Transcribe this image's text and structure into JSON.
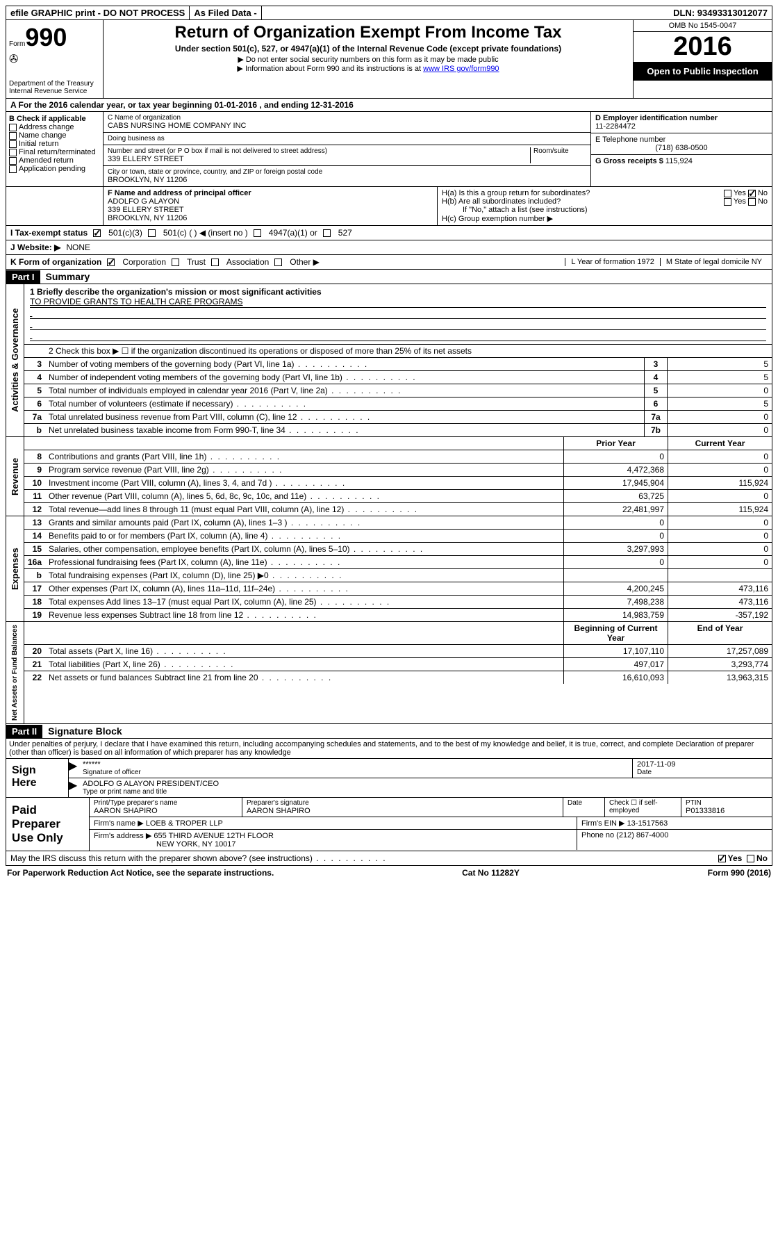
{
  "topbar": {
    "efile": "efile GRAPHIC print - DO NOT PROCESS",
    "asfiled": "As Filed Data -",
    "dln": "DLN: 93493313012077"
  },
  "formBox": {
    "form": "Form",
    "num": "990",
    "dept": "Department of the Treasury",
    "irs": "Internal Revenue Service"
  },
  "titleBox": {
    "main": "Return of Organization Exempt From Income Tax",
    "sub": "Under section 501(c), 527, or 4947(a)(1) of the Internal Revenue Code (except private foundations)",
    "note1": "▶ Do not enter social security numbers on this form as it may be made public",
    "note2": "▶ Information about Form 990 and its instructions is at ",
    "link": "www IRS gov/form990"
  },
  "yearBox": {
    "omb": "OMB No 1545-0047",
    "year": "2016",
    "open": "Open to Public Inspection"
  },
  "rowA": "A  For the 2016 calendar year, or tax year beginning 01-01-2016   , and ending 12-31-2016",
  "colB": {
    "label": "B Check if applicable",
    "items": [
      "Address change",
      "Name change",
      "Initial return",
      "Final return/terminated",
      "Amended return",
      "Application pending"
    ]
  },
  "colC": {
    "nameLabel": "C Name of organization",
    "name": "CABS NURSING HOME COMPANY INC",
    "dbaLabel": "Doing business as",
    "dba": "",
    "streetLabel": "Number and street (or P O  box if mail is not delivered to street address)",
    "roomLabel": "Room/suite",
    "street": "339 ELLERY STREET",
    "cityLabel": "City or town, state or province, country, and ZIP or foreign postal code",
    "city": "BROOKLYN, NY  11206"
  },
  "colDG": {
    "dLabel": "D Employer identification number",
    "ein": "11-2284472",
    "eLabel": "E Telephone number",
    "phone": "(718) 638-0500",
    "gLabel": "G Gross receipts $",
    "gross": "115,924"
  },
  "rowF": {
    "label": "F  Name and address of principal officer",
    "name": "ADOLFO G ALAYON",
    "street": "339 ELLERY STREET",
    "city": "BROOKLYN, NY  11206"
  },
  "rowH": {
    "ha": "H(a)  Is this a group return for subordinates?",
    "hb": "H(b)  Are all subordinates included?",
    "hbNote": "If \"No,\" attach a list  (see instructions)",
    "hc": "H(c)  Group exemption number ▶"
  },
  "rowI": {
    "label": "I   Tax-exempt status",
    "opts": [
      "501(c)(3)",
      "501(c) (   ) ◀ (insert no )",
      "4947(a)(1) or",
      "527"
    ]
  },
  "rowJ": {
    "label": "J  Website: ▶",
    "value": "NONE"
  },
  "rowK": {
    "label": "K Form of organization",
    "opts": [
      "Corporation",
      "Trust",
      "Association",
      "Other ▶"
    ],
    "l": "L Year of formation  1972",
    "m": "M State of legal domicile  NY"
  },
  "partI": {
    "header": "Part I",
    "title": "Summary"
  },
  "mission": {
    "label": "1  Briefly describe the organization's mission or most significant activities",
    "text": "TO PROVIDE GRANTS TO HEALTH CARE PROGRAMS"
  },
  "line2": "2   Check this box ▶ ☐  if the organization discontinued its operations or disposed of more than 25% of its net assets",
  "govLines": [
    {
      "n": "3",
      "t": "Number of voting members of the governing body (Part VI, line 1a)",
      "a": "3",
      "v": "5"
    },
    {
      "n": "4",
      "t": "Number of independent voting members of the governing body (Part VI, line 1b)",
      "a": "4",
      "v": "5"
    },
    {
      "n": "5",
      "t": "Total number of individuals employed in calendar year 2016 (Part V, line 2a)",
      "a": "5",
      "v": "0"
    },
    {
      "n": "6",
      "t": "Total number of volunteers (estimate if necessary)",
      "a": "6",
      "v": "5"
    },
    {
      "n": "7a",
      "t": "Total unrelated business revenue from Part VIII, column (C), line 12",
      "a": "7a",
      "v": "0"
    },
    {
      "n": "b",
      "t": "Net unrelated business taxable income from Form 990-T, line 34",
      "a": "7b",
      "v": "0"
    }
  ],
  "colHeaders": {
    "prior": "Prior Year",
    "current": "Current Year"
  },
  "revLines": [
    {
      "n": "8",
      "t": "Contributions and grants (Part VIII, line 1h)",
      "p": "0",
      "c": "0"
    },
    {
      "n": "9",
      "t": "Program service revenue (Part VIII, line 2g)",
      "p": "4,472,368",
      "c": "0"
    },
    {
      "n": "10",
      "t": "Investment income (Part VIII, column (A), lines 3, 4, and 7d )",
      "p": "17,945,904",
      "c": "115,924"
    },
    {
      "n": "11",
      "t": "Other revenue (Part VIII, column (A), lines 5, 6d, 8c, 9c, 10c, and 11e)",
      "p": "63,725",
      "c": "0"
    },
    {
      "n": "12",
      "t": "Total revenue—add lines 8 through 11 (must equal Part VIII, column (A), line 12)",
      "p": "22,481,997",
      "c": "115,924"
    }
  ],
  "expLines": [
    {
      "n": "13",
      "t": "Grants and similar amounts paid (Part IX, column (A), lines 1–3 )",
      "p": "0",
      "c": "0"
    },
    {
      "n": "14",
      "t": "Benefits paid to or for members (Part IX, column (A), line 4)",
      "p": "0",
      "c": "0"
    },
    {
      "n": "15",
      "t": "Salaries, other compensation, employee benefits (Part IX, column (A), lines 5–10)",
      "p": "3,297,993",
      "c": "0"
    },
    {
      "n": "16a",
      "t": "Professional fundraising fees (Part IX, column (A), line 11e)",
      "p": "0",
      "c": "0"
    },
    {
      "n": "b",
      "t": "Total fundraising expenses (Part IX, column (D), line 25) ▶0",
      "p": "",
      "c": ""
    },
    {
      "n": "17",
      "t": "Other expenses (Part IX, column (A), lines 11a–11d, 11f–24e)",
      "p": "4,200,245",
      "c": "473,116"
    },
    {
      "n": "18",
      "t": "Total expenses  Add lines 13–17 (must equal Part IX, column (A), line 25)",
      "p": "7,498,238",
      "c": "473,116"
    },
    {
      "n": "19",
      "t": "Revenue less expenses  Subtract line 18 from line 12",
      "p": "14,983,759",
      "c": "-357,192"
    }
  ],
  "balHeaders": {
    "begin": "Beginning of Current Year",
    "end": "End of Year"
  },
  "balLines": [
    {
      "n": "20",
      "t": "Total assets (Part X, line 16)",
      "p": "17,107,110",
      "c": "17,257,089"
    },
    {
      "n": "21",
      "t": "Total liabilities (Part X, line 26)",
      "p": "497,017",
      "c": "3,293,774"
    },
    {
      "n": "22",
      "t": "Net assets or fund balances  Subtract line 21 from line 20",
      "p": "16,610,093",
      "c": "13,963,315"
    }
  ],
  "partII": {
    "header": "Part II",
    "title": "Signature Block"
  },
  "sigText": "Under penalties of perjury, I declare that I have examined this return, including accompanying schedules and statements, and to the best of my knowledge and belief, it is true, correct, and complete  Declaration of preparer (other than officer) is based on all information of which preparer has any knowledge",
  "sign": {
    "label": "Sign Here",
    "stars": "******",
    "sigOfficer": "Signature of officer",
    "date": "2017-11-09",
    "dateLbl": "Date",
    "nameTitle": "ADOLFO G ALAYON PRESIDENT/CEO",
    "typeLbl": "Type or print name and title"
  },
  "paid": {
    "label": "Paid Preparer Use Only",
    "prepNameLbl": "Print/Type preparer's name",
    "prepName": "AARON SHAPIRO",
    "prepSigLbl": "Preparer's signature",
    "prepSig": "AARON SHAPIRO",
    "dateLbl": "Date",
    "checkLbl": "Check ☐ if self-employed",
    "ptinLbl": "PTIN",
    "ptin": "P01333816",
    "firmNameLbl": "Firm's name    ▶",
    "firmName": "LOEB & TROPER LLP",
    "firmEinLbl": "Firm's EIN ▶",
    "firmEin": "13-1517563",
    "firmAddrLbl": "Firm's address ▶",
    "firmAddr1": "655 THIRD AVENUE 12TH FLOOR",
    "firmAddr2": "NEW YORK, NY  10017",
    "phoneLbl": "Phone no",
    "phone": "(212) 867-4000"
  },
  "discuss": "May the IRS discuss this return with the preparer shown above? (see instructions)",
  "footer": {
    "left": "For Paperwork Reduction Act Notice, see the separate instructions.",
    "mid": "Cat  No  11282Y",
    "right": "Form 990 (2016)"
  },
  "vlabels": {
    "gov": "Activities & Governance",
    "rev": "Revenue",
    "exp": "Expenses",
    "bal": "Net Assets or Fund Balances"
  }
}
